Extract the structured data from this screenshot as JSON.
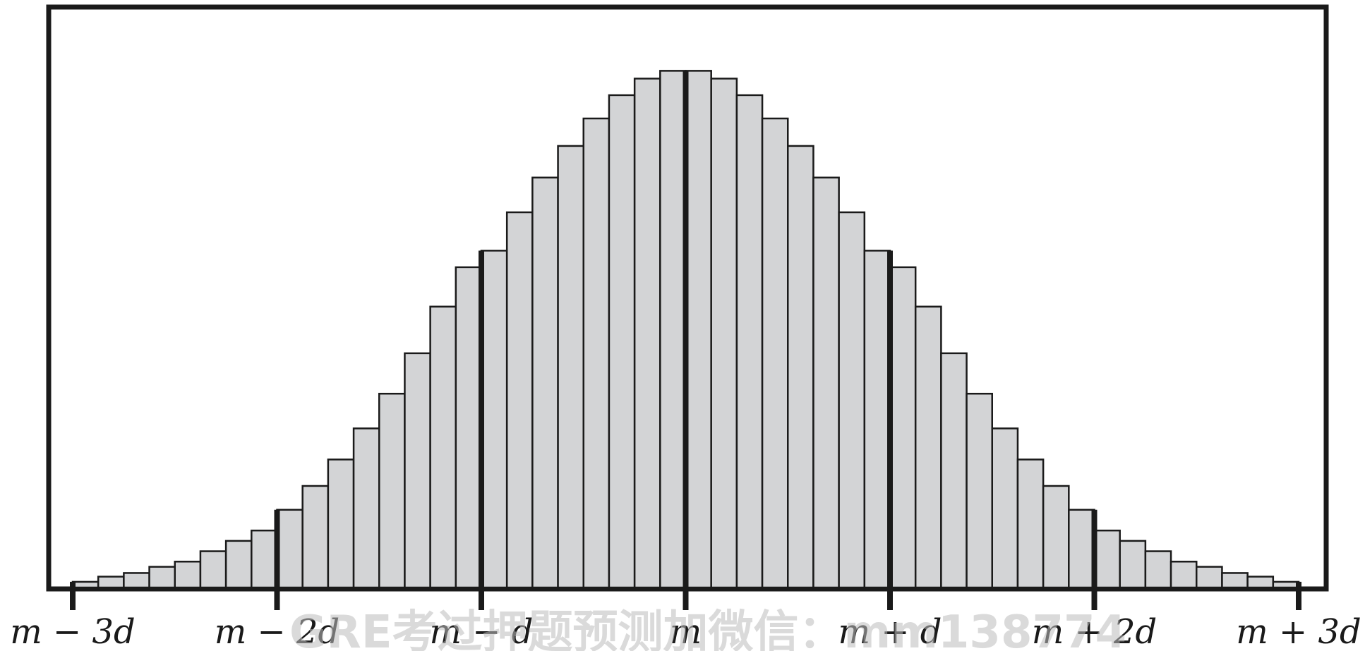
{
  "chart_data": {
    "type": "bar",
    "title": "",
    "xlabel": "",
    "ylabel": "",
    "x_ticks": [
      "m − 3d",
      "m − 2d",
      "m − d",
      "m",
      "m + d",
      "m + 2d",
      "m + 3d"
    ],
    "bins_per_d": 8,
    "x_range_in_d": [
      -3,
      3
    ],
    "values": [
      0.011,
      0.021,
      0.028,
      0.04,
      0.05,
      0.07,
      0.09,
      0.11,
      0.15,
      0.196,
      0.247,
      0.307,
      0.374,
      0.452,
      0.542,
      0.618,
      0.65,
      0.724,
      0.791,
      0.852,
      0.905,
      0.95,
      0.982,
      0.997,
      0.997,
      0.982,
      0.95,
      0.905,
      0.852,
      0.791,
      0.724,
      0.65,
      0.618,
      0.542,
      0.452,
      0.374,
      0.307,
      0.247,
      0.196,
      0.15,
      0.11,
      0.09,
      0.07,
      0.05,
      0.04,
      0.028,
      0.021,
      0.011
    ],
    "ylim": [
      0,
      1.12
    ],
    "bar_color": "#d3d4d6",
    "edge_color": "#1a1a1a",
    "grid": false,
    "legend": "none"
  },
  "watermark_text": "GRE考过押题预测加微信：mm138774"
}
